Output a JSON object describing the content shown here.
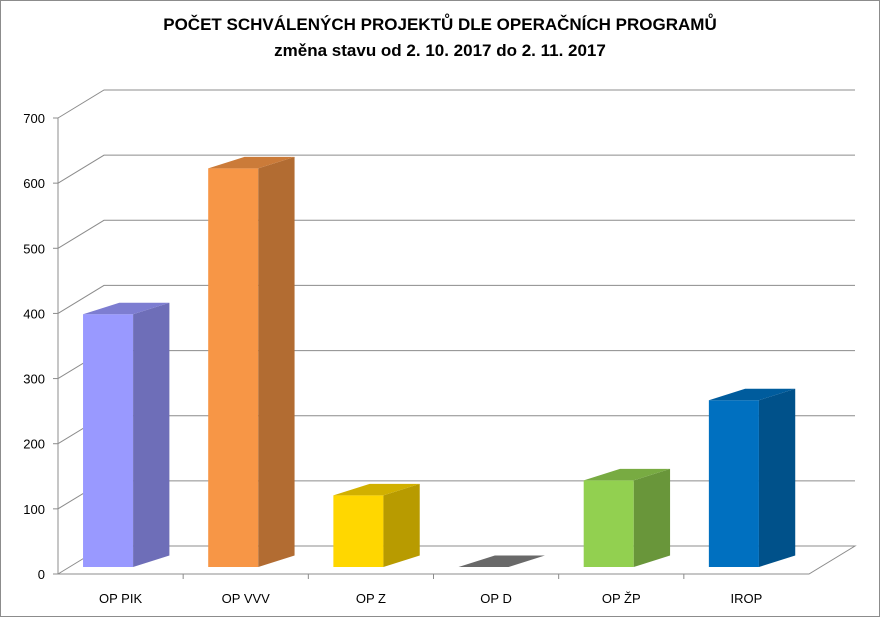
{
  "chart_data": {
    "type": "bar",
    "title": "POČET SCHVÁLENÝCH PROJEKTŮ DLE OPERAČNÍCH PROGRAMŮ",
    "subtitle": "změna stavu od 2. 10. 2017 do 2. 11. 2017",
    "xlabel": "",
    "ylabel": "",
    "categories": [
      "OP PIK",
      "OP VVV",
      "OP Z",
      "OP D",
      "OP ŽP",
      "IROP"
    ],
    "values": [
      388,
      612,
      110,
      0,
      133,
      256
    ],
    "ylim": [
      0,
      700
    ],
    "yticks": [
      "0",
      "100",
      "200",
      "300",
      "400",
      "500",
      "600",
      "700"
    ],
    "grid": true,
    "legend": "none",
    "three_d": true,
    "colors": [
      "#9999ff",
      "#f79646",
      "#ffd700",
      "#808080",
      "#92d050",
      "#0070c0"
    ]
  }
}
